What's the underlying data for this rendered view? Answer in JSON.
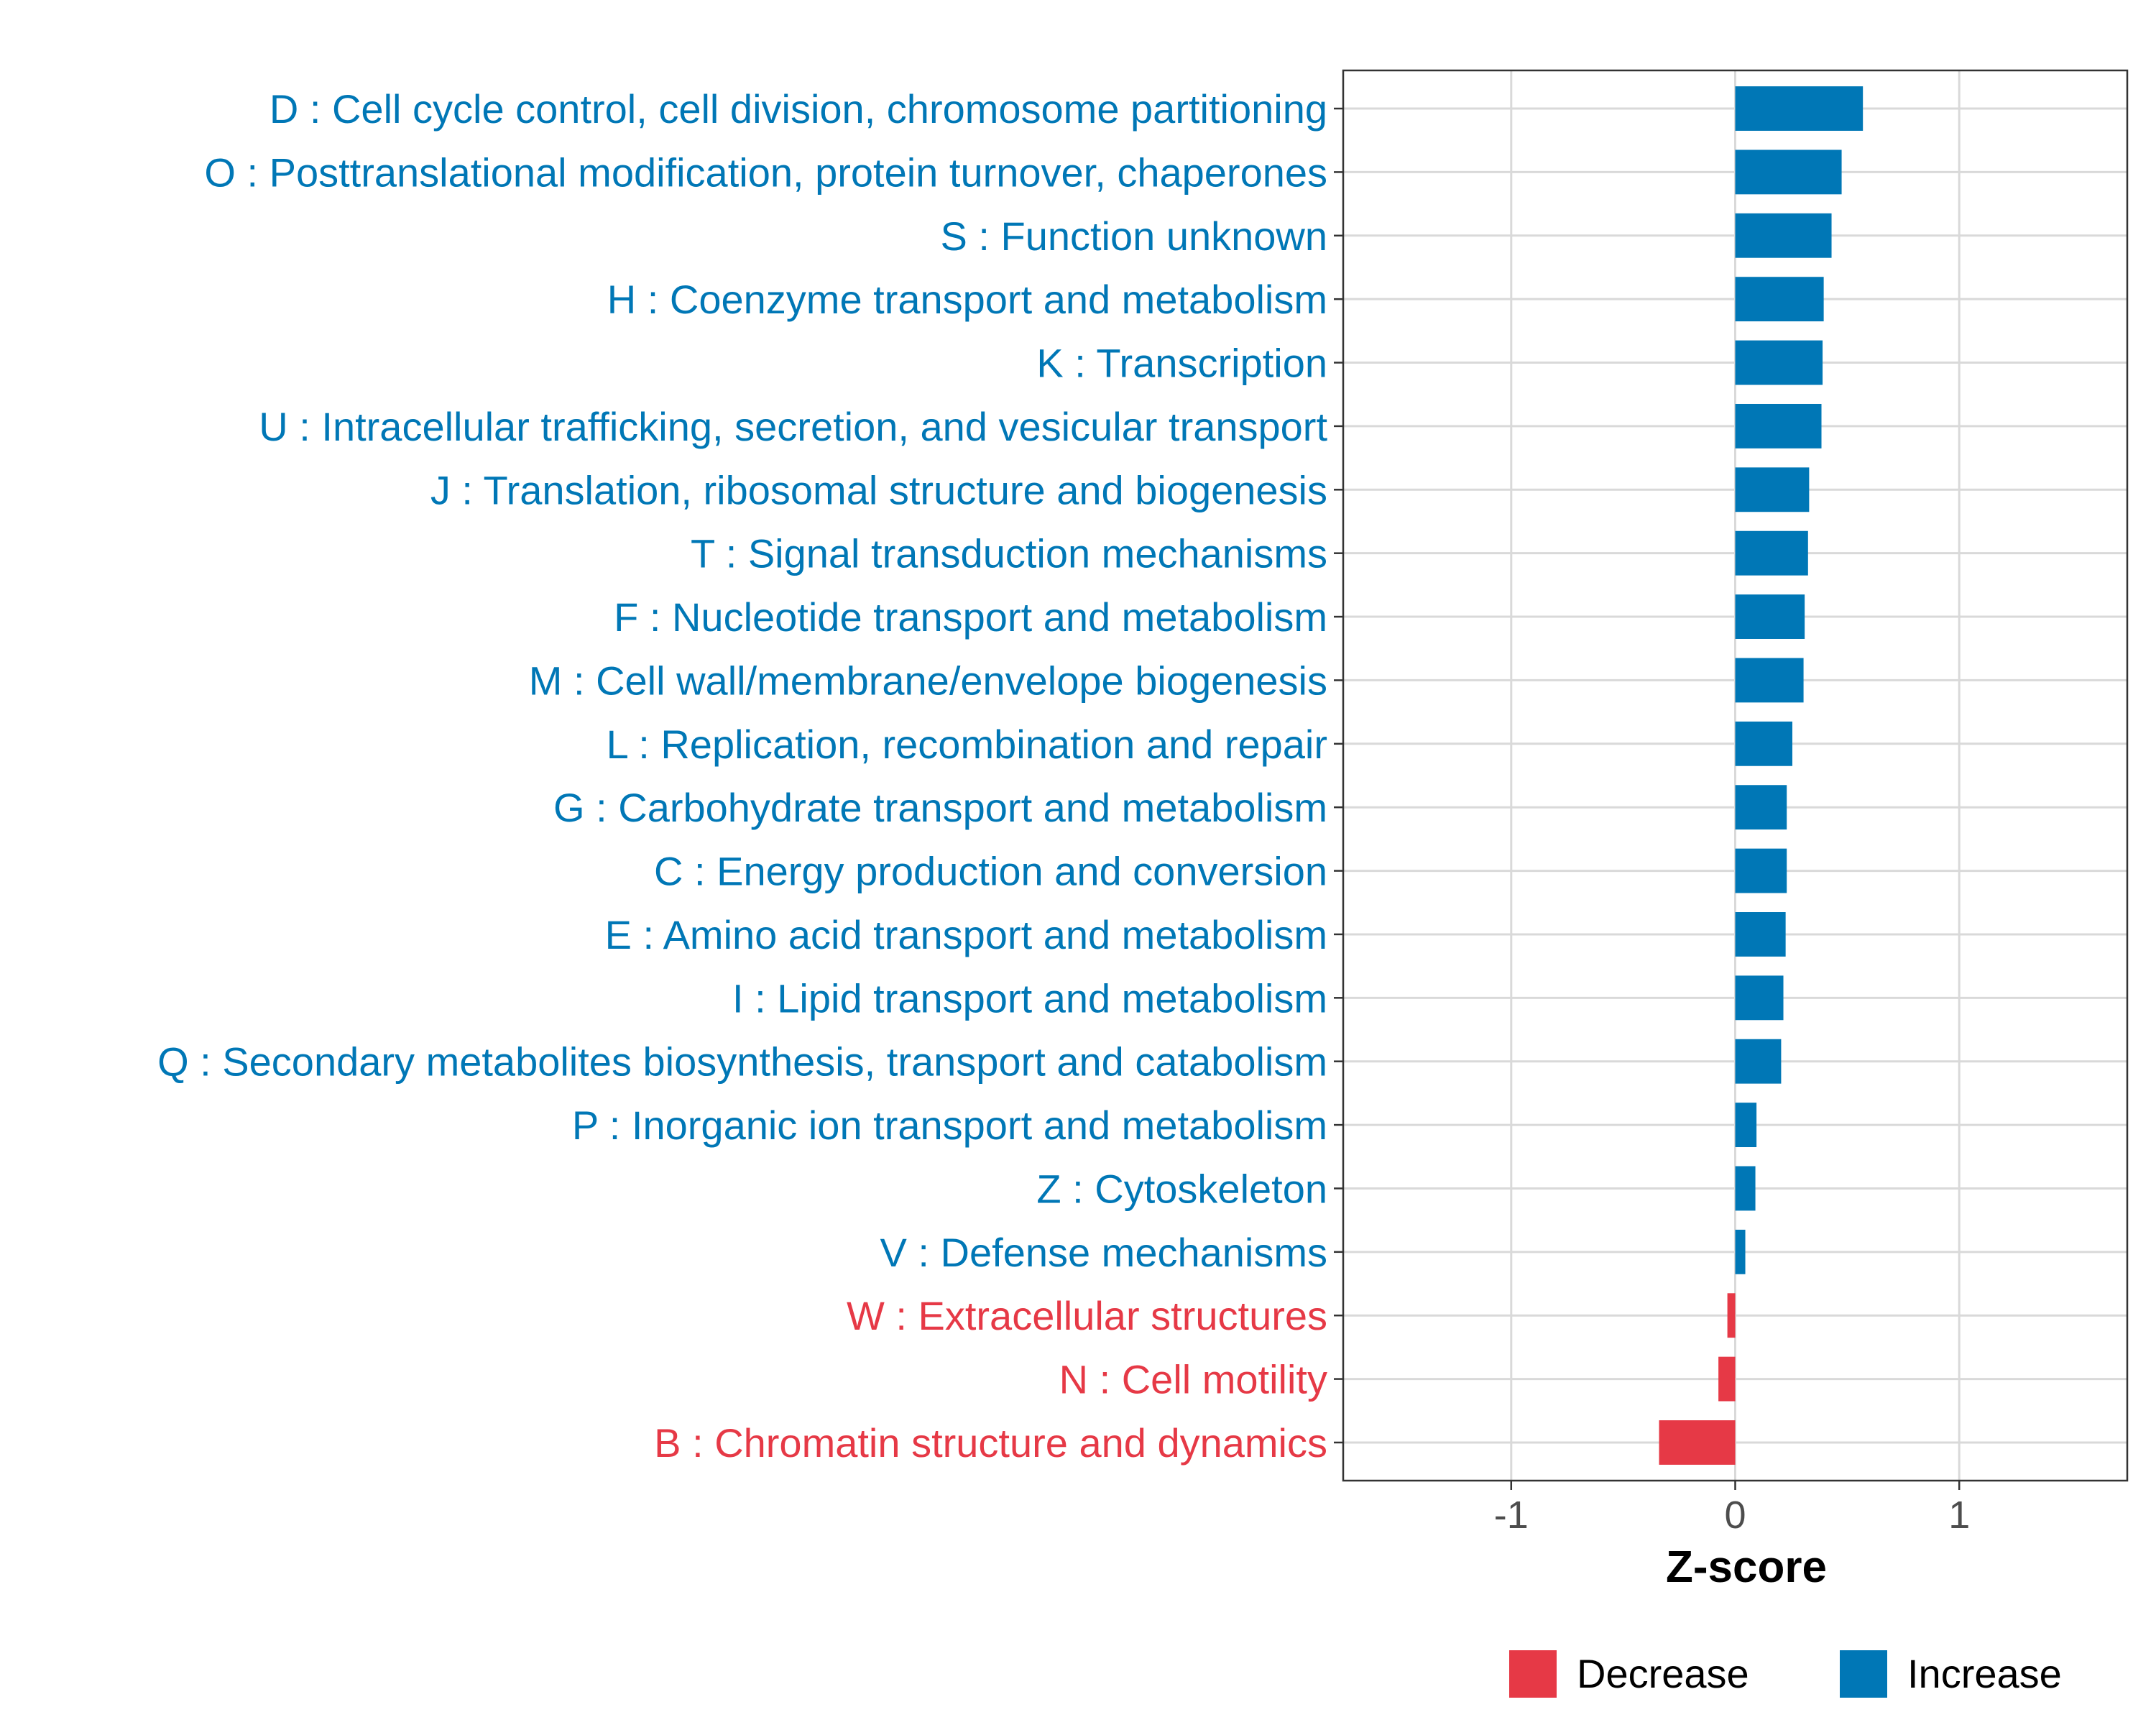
{
  "chart_data": {
    "type": "bar",
    "orientation": "horizontal",
    "title": "",
    "xlabel": "Z-score",
    "ylabel": "",
    "xlim": [
      -1.75,
      1.75
    ],
    "xticks": [
      -1,
      0,
      1
    ],
    "xtick_labels": [
      "-1",
      "0",
      "1"
    ],
    "grid": true,
    "legend_position": "bottom",
    "categories": [
      "D : Cell cycle control, cell division, chromosome partitioning",
      "O : Posttranslational modification, protein turnover, chaperones",
      "S : Function unknown",
      "H : Coenzyme transport and metabolism",
      "K : Transcription",
      "U : Intracellular trafficking, secretion, and vesicular transport",
      "J : Translation, ribosomal structure and biogenesis",
      "T : Signal transduction mechanisms",
      "F : Nucleotide transport and metabolism",
      "M : Cell wall/membrane/envelope biogenesis",
      "L : Replication, recombination and repair",
      "G : Carbohydrate transport and metabolism",
      "C : Energy production and conversion",
      "E : Amino acid transport and metabolism",
      "I : Lipid transport and metabolism",
      "Q : Secondary metabolites biosynthesis, transport and catabolism",
      "P : Inorganic ion transport and metabolism",
      "Z : Cytoskeleton",
      "V : Defense mechanisms",
      "W : Extracellular structures",
      "N : Cell motility",
      "B : Chromatin structure and dynamics"
    ],
    "values": [
      0.57,
      0.475,
      0.43,
      0.395,
      0.39,
      0.385,
      0.33,
      0.325,
      0.31,
      0.305,
      0.255,
      0.23,
      0.23,
      0.225,
      0.215,
      0.205,
      0.095,
      0.09,
      0.045,
      -0.035,
      -0.075,
      -0.34
    ],
    "series_groups": [
      "Increase",
      "Increase",
      "Increase",
      "Increase",
      "Increase",
      "Increase",
      "Increase",
      "Increase",
      "Increase",
      "Increase",
      "Increase",
      "Increase",
      "Increase",
      "Increase",
      "Increase",
      "Increase",
      "Increase",
      "Increase",
      "Increase",
      "Decrease",
      "Decrease",
      "Decrease"
    ],
    "legend": [
      {
        "name": "Decrease",
        "color": "#e63946"
      },
      {
        "name": "Increase",
        "color": "#0077b6"
      }
    ]
  }
}
